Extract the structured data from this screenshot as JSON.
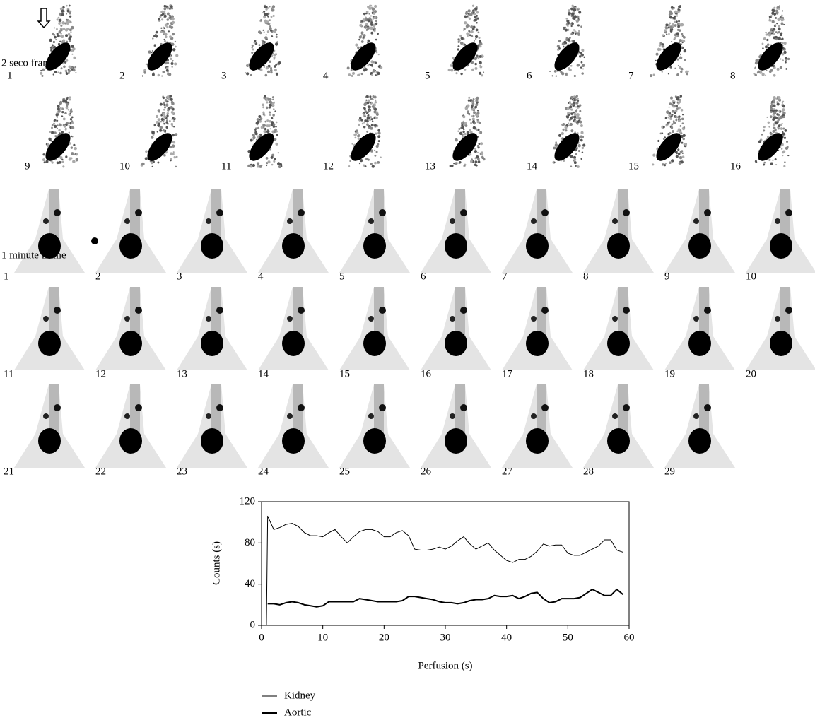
{
  "frames_2s": {
    "label": "2 seco frame",
    "numbers": [
      1,
      2,
      3,
      4,
      5,
      6,
      7,
      8,
      9,
      10,
      11,
      12,
      13,
      14,
      15,
      16
    ]
  },
  "frames_1min": {
    "label": "1 minute frame",
    "numbers": [
      1,
      2,
      3,
      4,
      5,
      6,
      7,
      8,
      9,
      10,
      11,
      12,
      13,
      14,
      15,
      16,
      17,
      18,
      19,
      20,
      21,
      22,
      23,
      24,
      25,
      26,
      27,
      28,
      29
    ]
  },
  "chart_data": {
    "type": "line",
    "xlabel": "Perfusion (s)",
    "ylabel": "Counts (s)",
    "x": [
      0.8,
      1,
      2,
      3,
      4,
      5,
      6,
      7,
      8,
      9,
      10,
      11,
      12,
      13,
      14,
      15,
      16,
      17,
      18,
      19,
      20,
      21,
      22,
      23,
      24,
      25,
      26,
      27,
      28,
      29,
      30,
      31,
      32,
      33,
      34,
      35,
      36,
      37,
      38,
      39,
      40,
      41,
      42,
      43,
      44,
      45,
      46,
      47,
      48,
      49,
      50,
      51,
      52,
      53,
      54,
      55,
      56,
      57,
      58,
      59
    ],
    "series": [
      {
        "name": "Kidney",
        "color": "#000000",
        "width": 1,
        "values": [
          0,
          106,
          93,
          95,
          98,
          99,
          96,
          90,
          87,
          87,
          86,
          90,
          93,
          86,
          80,
          86,
          91,
          93,
          93,
          91,
          86,
          86,
          90,
          92,
          87,
          74,
          73,
          73,
          74,
          76,
          74,
          77,
          82,
          86,
          79,
          74,
          77,
          80,
          73,
          68,
          63,
          61,
          64,
          64,
          67,
          72,
          79,
          77,
          78,
          78,
          70,
          68,
          68,
          71,
          74,
          77,
          83,
          83,
          73,
          71
        ]
      },
      {
        "name": "Aortic",
        "color": "#000000",
        "width": 2,
        "values": [
          null,
          21,
          21,
          20,
          22,
          23,
          22,
          20,
          19,
          18,
          19,
          23,
          23,
          23,
          23,
          23,
          26,
          25,
          24,
          23,
          23,
          23,
          23,
          24,
          28,
          28,
          27,
          26,
          25,
          23,
          22,
          22,
          21,
          22,
          24,
          25,
          25,
          26,
          29,
          28,
          28,
          29,
          26,
          28,
          31,
          32,
          26,
          22,
          23,
          26,
          26,
          26,
          27,
          31,
          35,
          32,
          29,
          29,
          35,
          30
        ]
      }
    ],
    "xlim": [
      0,
      60
    ],
    "xticks": [
      0,
      10,
      20,
      30,
      40,
      50,
      60
    ],
    "ylim": [
      0,
      120
    ],
    "yticks": [
      0,
      40,
      80,
      120
    ]
  }
}
